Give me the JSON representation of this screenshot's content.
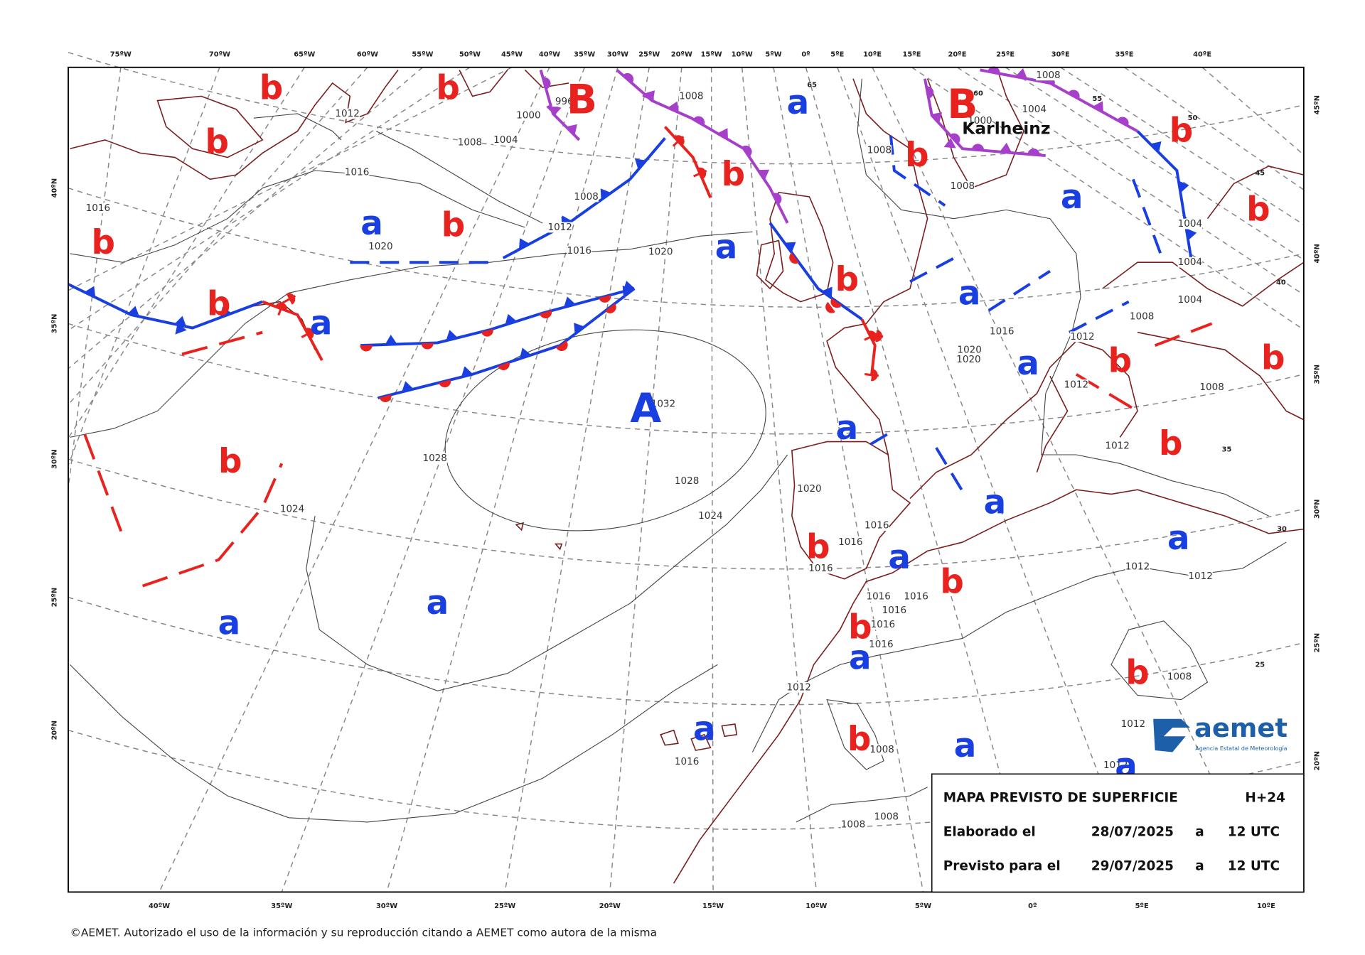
{
  "top_axis_labels": [
    "75ºW",
    "70ºW",
    "65ºW",
    "60ºW",
    "55ºW",
    "50ºW",
    "45ºW",
    "40ºW",
    "35ºW",
    "30ºW",
    "25ºW",
    "20ºW",
    "15ºW",
    "10ºW",
    "5ºW",
    "0º",
    "5ºE",
    "10ºE",
    "15ºE",
    "20ºE",
    "25ºE",
    "30ºE",
    "35ºE",
    "40ºE"
  ],
  "bottom_axis_labels": [
    "40ºW",
    "35ºW",
    "30ºW",
    "25ºW",
    "20ºW",
    "15ºW",
    "10ºW",
    "5ºW",
    "0º",
    "5ºE",
    "10ºE"
  ],
  "left_axis_labels": [
    "40ºN",
    "35ºN",
    "30ºN",
    "25ºN",
    "20ºN"
  ],
  "right_axis_labels": [
    "45ºN",
    "40ºN",
    "35ºN",
    "30ºN",
    "25ºN",
    "20ºN"
  ],
  "inner_latitude_labels": [
    "65",
    "60",
    "55",
    "50",
    "45",
    "40",
    "35",
    "30",
    "25"
  ],
  "isobar_labels": [
    "1012",
    "1008",
    "1004",
    "1000",
    "996",
    "1008",
    "1016",
    "1016",
    "1020",
    "1008",
    "1012",
    "1016",
    "1020",
    "1008",
    "1004",
    "1000",
    "1008",
    "1008",
    "1004",
    "1004",
    "1004",
    "1008",
    "1012",
    "1016",
    "1020",
    "1020",
    "1012",
    "1008",
    "1012",
    "1032",
    "1028",
    "1028",
    "1024",
    "1024",
    "1020",
    "1016",
    "1016",
    "1016",
    "1016",
    "1016",
    "1016",
    "1016",
    "1016",
    "1012",
    "1012",
    "1012",
    "1008",
    "1012",
    "1008",
    "1016",
    "1008",
    "1008",
    "1012"
  ],
  "pressure_centers": [
    "b",
    "b",
    "b",
    "b",
    "b",
    "b",
    "b",
    "b",
    "b",
    "b",
    "b",
    "b",
    "b",
    "b",
    "b",
    "b",
    "b",
    "b",
    "b",
    "b",
    "a",
    "a",
    "a",
    "a",
    "a",
    "a",
    "a",
    "a",
    "a",
    "a",
    "a",
    "a",
    "a",
    "a",
    "a",
    "a",
    "a",
    "A",
    "B",
    "B"
  ],
  "storm_name": "Karlheinz",
  "info_box": {
    "title": "MAPA PREVISTO DE SUPERFICIE",
    "lead_time": "H+24",
    "rows": [
      [
        "Elaborado el",
        "28/07/2025",
        "a",
        "12 UTC"
      ],
      [
        "Previsto para el",
        "29/07/2025",
        "a",
        "12 UTC"
      ]
    ]
  },
  "logo": {
    "name": "aemet",
    "subtitle": "Agencia Estatal de Meteorología"
  },
  "copyright": "©AEMET. Autorizado el uso de la información y su reproducción citando a AEMET como autora de la misma"
}
